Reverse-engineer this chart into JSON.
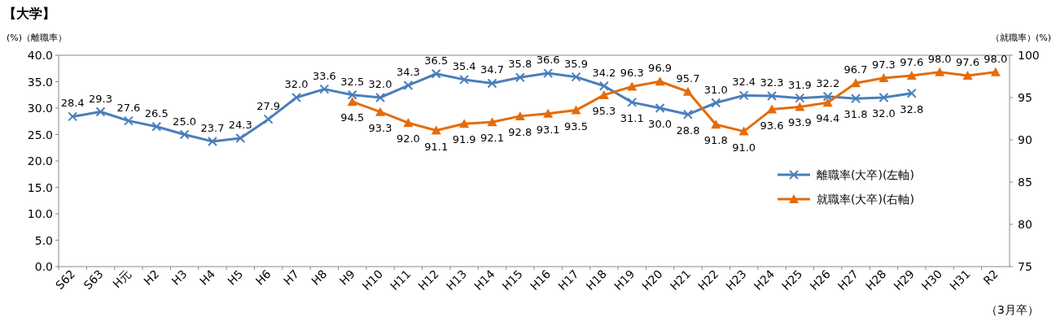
{
  "chart_data": {
    "type": "line",
    "title": "【大学】",
    "ylabel": "(%)（離職率）",
    "y2label": "（就職率）(%)",
    "categories": [
      "S62",
      "S63",
      "H元",
      "H2",
      "H3",
      "H4",
      "H5",
      "H6",
      "H7",
      "H8",
      "H9",
      "H10",
      "H11",
      "H12",
      "H13",
      "H14",
      "H15",
      "H16",
      "H17",
      "H18",
      "H19",
      "H20",
      "H21",
      "H22",
      "H23",
      "H24",
      "H25",
      "H26",
      "H27",
      "H28",
      "H29",
      "H30",
      "H31",
      "R2"
    ],
    "series": [
      {
        "name": "離職率(大卒)(左軸)",
        "color": "#4a7ebb",
        "marker": "cross",
        "values": [
          28.4,
          29.3,
          27.6,
          26.5,
          25.0,
          23.7,
          24.3,
          27.9,
          32.0,
          33.6,
          32.5,
          32.0,
          34.3,
          36.5,
          35.4,
          34.7,
          35.8,
          36.6,
          35.9,
          34.2,
          31.1,
          30.0,
          28.8,
          31.0,
          32.4,
          32.3,
          31.9,
          32.2,
          31.8,
          32.0,
          32.8,
          null,
          null,
          null
        ],
        "value_labels": [
          "28.4",
          "29.3",
          "27.6",
          "26.5",
          "25.0",
          "23.7",
          "24.3",
          "27.9",
          "32.0",
          "33.6",
          "32.5",
          "32.0",
          "34.3",
          "36.5",
          "35.4",
          "34.7",
          "35.8",
          "36.6",
          "35.9",
          "34.2",
          "31.1",
          "30.0",
          "28.8",
          "31.0",
          "32.4",
          "32.3",
          "31.9",
          "32.2",
          "31.8",
          "32.0",
          "32.8",
          null,
          null,
          null
        ]
      },
      {
        "name": "就職率(大卒)(右軸)",
        "color": "#e46c0a",
        "marker": "triangle",
        "axis": "y2",
        "values": [
          null,
          null,
          null,
          null,
          null,
          null,
          null,
          null,
          null,
          null,
          94.5,
          93.3,
          92.0,
          91.1,
          91.9,
          92.1,
          92.8,
          93.1,
          93.5,
          95.3,
          96.3,
          96.9,
          95.7,
          91.8,
          91.0,
          93.6,
          93.9,
          94.4,
          96.7,
          97.3,
          97.6,
          98.0,
          97.6,
          98.0
        ],
        "value_labels": [
          null,
          null,
          null,
          null,
          null,
          null,
          null,
          null,
          null,
          null,
          "94.5",
          "93.3",
          "92.0",
          "91.1",
          "91.9",
          "92.1",
          "92.8",
          "93.1",
          "93.5",
          "95.3",
          "96.3",
          "96.9",
          "95.7",
          "91.8",
          "91.0",
          "93.6",
          "93.9",
          "94.4",
          "96.7",
          "97.3",
          "97.6",
          "98.0",
          "97.6",
          "98.0"
        ]
      }
    ],
    "ylim": [
      0,
      40
    ],
    "yticks": [
      {
        "value": 0,
        "label": "0.0"
      },
      {
        "value": 5,
        "label": "5.0"
      },
      {
        "value": 10,
        "label": "10.0"
      },
      {
        "value": 15,
        "label": "15.0"
      },
      {
        "value": 20,
        "label": "20.0"
      },
      {
        "value": 25,
        "label": "25.0"
      },
      {
        "value": 30,
        "label": "30.0"
      },
      {
        "value": 35,
        "label": "35.0"
      },
      {
        "value": 40,
        "label": "40.0"
      }
    ],
    "y2lim": [
      75,
      100
    ],
    "y2ticks": [
      75,
      80,
      85,
      90,
      95,
      100
    ],
    "legend": "right",
    "grid": false,
    "annotations": [
      "（3月卒）"
    ]
  }
}
